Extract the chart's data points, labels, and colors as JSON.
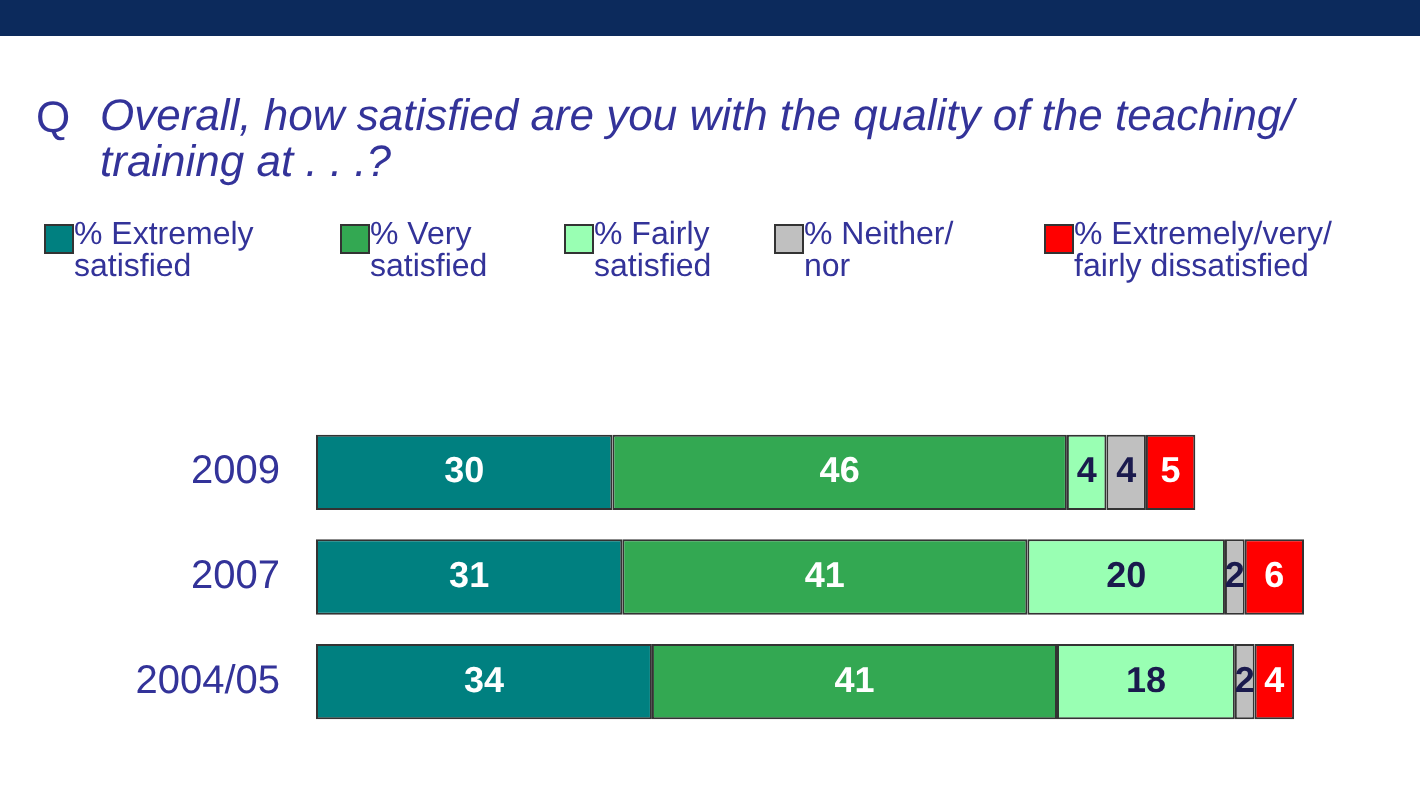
{
  "chart_data": {
    "type": "bar",
    "orientation": "horizontal",
    "stacked": true,
    "title": "Overall, how satisfied are you with the quality of the teaching/ training at . . .?",
    "annotations": [
      "Q"
    ],
    "categories": [
      "2009",
      "2007",
      "2004/05"
    ],
    "series": [
      {
        "name": "% Extremely satisfied",
        "color": "#008080",
        "values": [
          30,
          31,
          34
        ]
      },
      {
        "name": "% Very satisfied",
        "color": "#33a852",
        "values": [
          46,
          41,
          41
        ]
      },
      {
        "name": "% Fairly satisfied",
        "color": "#99ffb3",
        "values": [
          4,
          20,
          18
        ]
      },
      {
        "name": "% Neither/ nor",
        "color": "#c0c0c0",
        "values": [
          4,
          2,
          2
        ]
      },
      {
        "name": "% Extremely/very/ fairly dissatisfied",
        "color": "#ff0000",
        "values": [
          5,
          6,
          4
        ]
      }
    ],
    "data_labels": true,
    "legend": "top",
    "tick_labels": "y"
  }
}
